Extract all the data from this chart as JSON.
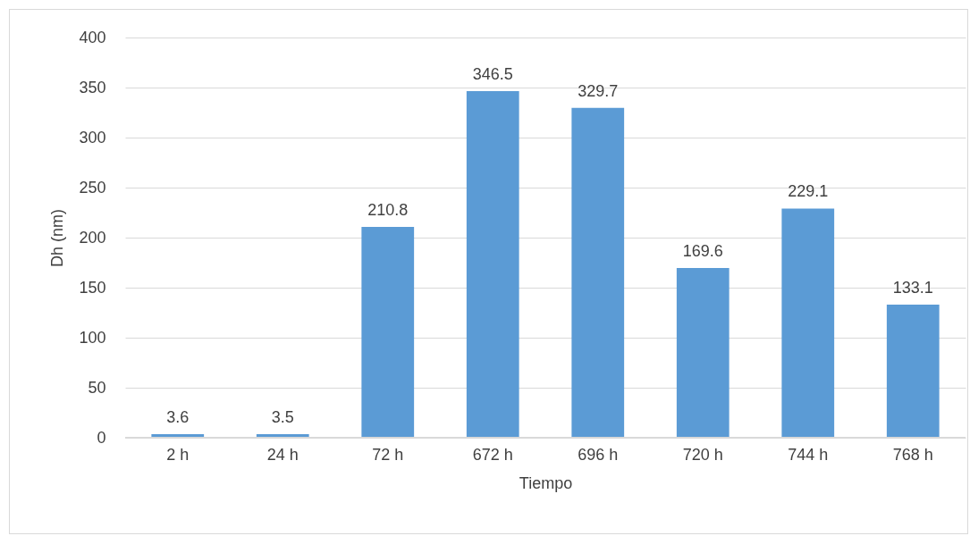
{
  "chart_data": {
    "type": "bar",
    "xlabel": "Tiempo",
    "ylabel": "Dh (nm)",
    "categories": [
      "2 h",
      "24 h",
      "72 h",
      "672 h",
      "696 h",
      "720 h",
      "744 h",
      "768 h"
    ],
    "values": [
      3.6,
      3.5,
      210.8,
      346.5,
      329.7,
      169.6,
      229.1,
      133.1
    ],
    "color": "#5b9bd5",
    "ylim": [
      0,
      400
    ],
    "yticks": [
      0,
      50,
      100,
      150,
      200,
      250,
      300,
      350,
      400
    ],
    "grid": "y",
    "data_labels": true
  }
}
